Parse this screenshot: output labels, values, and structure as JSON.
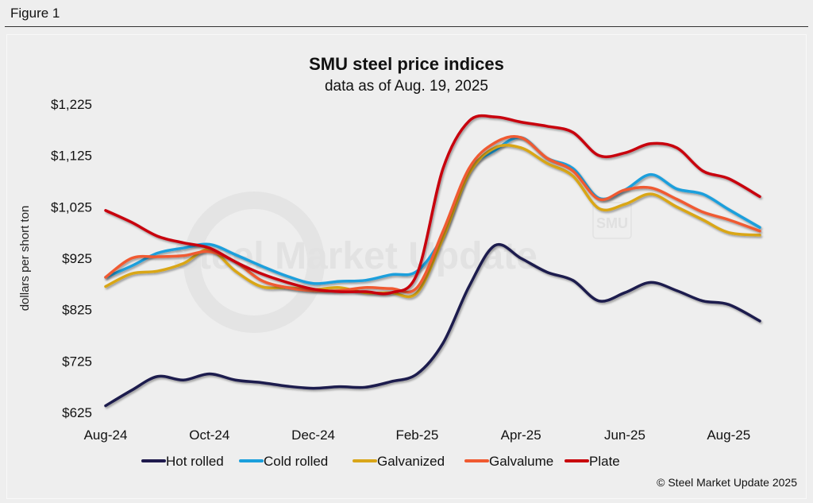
{
  "figure": {
    "label": "Figure 1",
    "credit": "© Steel Market Update 2025",
    "watermark": "Steel Market Update",
    "watermark_badge": "SMU"
  },
  "chart_data": {
    "type": "line",
    "title": "SMU steel price indices",
    "subtitle": "data as of Aug. 19, 2025",
    "xlabel": "",
    "ylabel": "dollars per short ton",
    "ylim": [
      625,
      1225
    ],
    "yticks": [
      625,
      725,
      825,
      925,
      1025,
      1125,
      1225
    ],
    "ytick_labels": [
      "$625",
      "$725",
      "$825",
      "$925",
      "$1,025",
      "$1,125",
      "$1,225"
    ],
    "x_unit": "months since Aug-24",
    "xlim": [
      0,
      12.6
    ],
    "xticks": [
      0,
      2,
      4,
      6,
      8,
      10,
      12
    ],
    "xtick_labels": [
      "Aug-24",
      "Oct-24",
      "Dec-24",
      "Feb-25",
      "Apr-25",
      "Jun-25",
      "Aug-25"
    ],
    "grid": false,
    "legend_position": "bottom",
    "x": [
      0,
      0.5,
      1,
      1.5,
      2,
      2.5,
      3,
      3.5,
      4,
      4.5,
      5,
      5.5,
      6,
      6.5,
      7,
      7.5,
      8,
      8.5,
      9,
      9.5,
      10,
      10.5,
      11,
      11.5,
      12,
      12.6
    ],
    "series": [
      {
        "name": "Hot rolled",
        "color": "#1f1a4d",
        "values": [
          638,
          668,
          695,
          688,
          700,
          688,
          683,
          676,
          672,
          675,
          674,
          685,
          700,
          760,
          870,
          950,
          925,
          898,
          882,
          842,
          858,
          878,
          862,
          842,
          835,
          803
        ]
      },
      {
        "name": "Cold rolled",
        "color": "#1a9fdc",
        "values": [
          888,
          910,
          935,
          945,
          952,
          932,
          910,
          890,
          876,
          880,
          882,
          893,
          900,
          970,
          1095,
          1135,
          1160,
          1120,
          1100,
          1042,
          1058,
          1088,
          1060,
          1050,
          1020,
          985
        ]
      },
      {
        "name": "Galvanized",
        "color": "#d9a619",
        "values": [
          870,
          895,
          900,
          915,
          942,
          900,
          870,
          868,
          864,
          868,
          858,
          858,
          858,
          965,
          1090,
          1140,
          1140,
          1110,
          1085,
          1022,
          1030,
          1050,
          1025,
          1000,
          975,
          970
        ]
      },
      {
        "name": "Galvalume",
        "color": "#f05a30",
        "values": [
          888,
          925,
          928,
          930,
          938,
          918,
          882,
          868,
          862,
          862,
          868,
          866,
          868,
          978,
          1100,
          1150,
          1160,
          1120,
          1095,
          1040,
          1058,
          1062,
          1040,
          1015,
          1000,
          978
        ]
      },
      {
        "name": "Plate",
        "color": "#c8050c",
        "values": [
          1018,
          995,
          968,
          955,
          945,
          918,
          895,
          878,
          865,
          860,
          860,
          858,
          895,
          1100,
          1192,
          1200,
          1190,
          1182,
          1170,
          1125,
          1130,
          1148,
          1140,
          1095,
          1080,
          1045
        ]
      }
    ]
  }
}
